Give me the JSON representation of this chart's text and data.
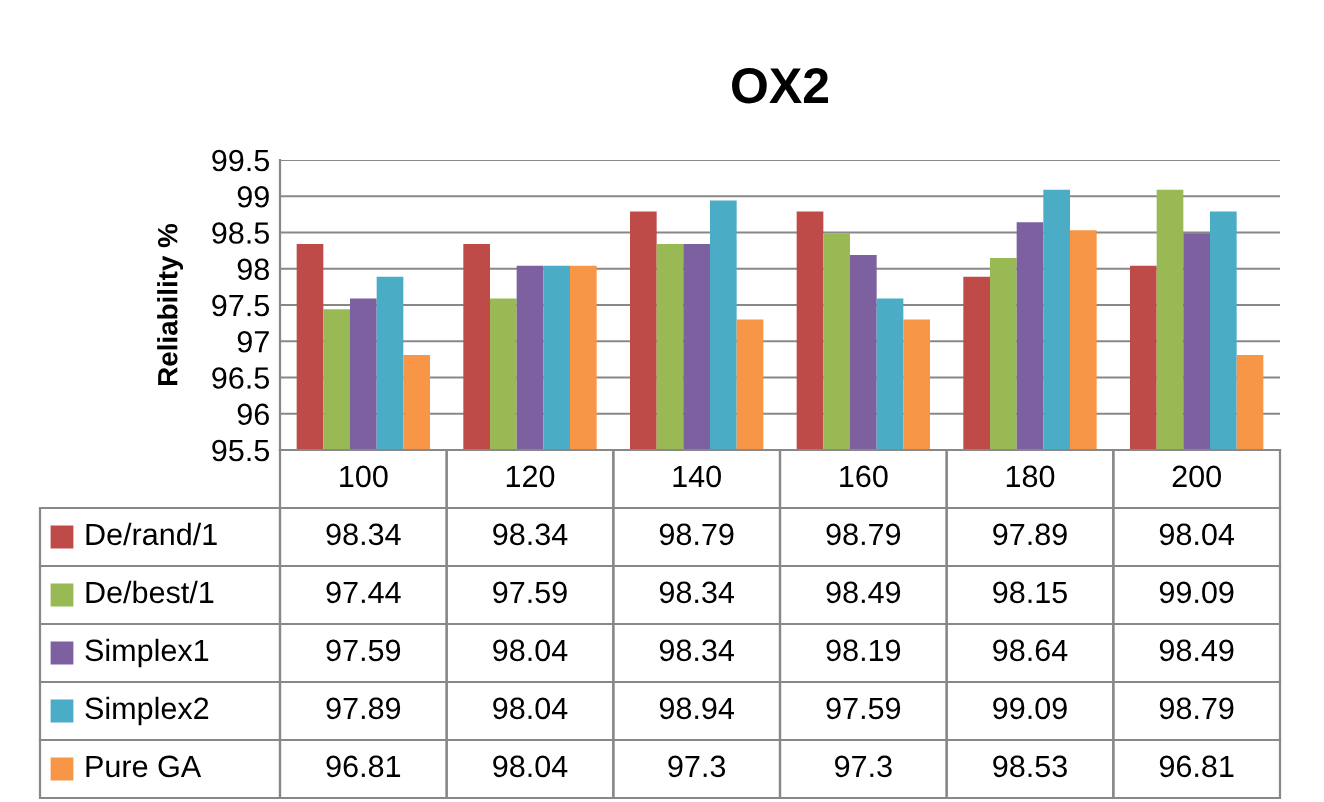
{
  "chart_data": {
    "type": "bar",
    "title": "OX2",
    "ylabel": "Reliability %",
    "categories": [
      "100",
      "120",
      "140",
      "160",
      "180",
      "200"
    ],
    "series": [
      {
        "name": "De/rand/1",
        "color": "#be4b48",
        "values": [
          98.34,
          98.34,
          98.79,
          98.79,
          97.89,
          98.04
        ]
      },
      {
        "name": "De/best/1",
        "color": "#98b954",
        "values": [
          97.44,
          97.59,
          98.34,
          98.49,
          98.15,
          99.09
        ]
      },
      {
        "name": "Simplex1",
        "color": "#7d60a0",
        "values": [
          97.59,
          98.04,
          98.34,
          98.19,
          98.64,
          98.49
        ]
      },
      {
        "name": "Simplex2",
        "color": "#4bacc6",
        "values": [
          97.89,
          98.04,
          98.94,
          97.59,
          99.09,
          98.79
        ]
      },
      {
        "name": "Pure GA",
        "color": "#f79646",
        "values": [
          96.81,
          98.04,
          97.3,
          97.3,
          98.53,
          96.81
        ]
      }
    ],
    "ylim": [
      95.5,
      99.5
    ],
    "yticks": [
      95.5,
      96,
      96.5,
      97,
      97.5,
      98,
      98.5,
      99,
      99.5
    ],
    "grid": "y",
    "data_labels": true,
    "legend": "bottom"
  }
}
